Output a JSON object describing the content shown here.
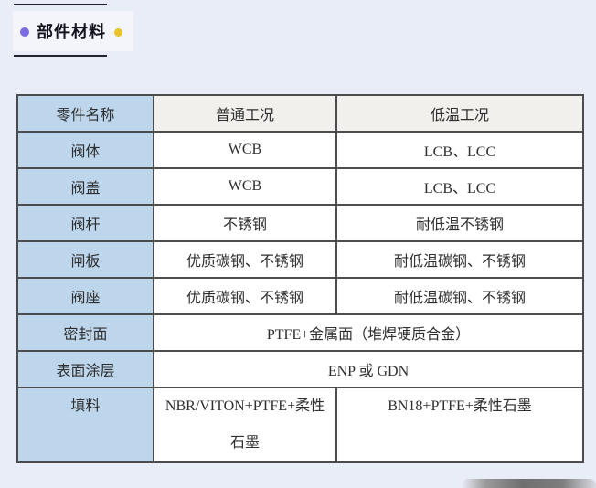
{
  "page_bg": "#e9edf8",
  "heading": {
    "title": "部件材料",
    "dot_left_color": "#7a6ce0",
    "dot_right_color": "#e9c32a"
  },
  "table": {
    "columns": [
      "零件名称",
      "普通工况",
      "低温工况"
    ],
    "rows": [
      {
        "part": "阀体",
        "normal": "WCB",
        "low_temp": "LCB、LCC"
      },
      {
        "part": "阀盖",
        "normal": "WCB",
        "low_temp": "LCB、LCC"
      },
      {
        "part": "阀杆",
        "normal": "不锈钢",
        "low_temp": "耐低温不锈钢"
      },
      {
        "part": "闸板",
        "normal": "优质碳钢、不锈钢",
        "low_temp": "耐低温碳钢、不锈钢"
      },
      {
        "part": "阀座",
        "normal": "优质碳钢、不锈钢",
        "low_temp": "耐低温碳钢、不锈钢"
      },
      {
        "part": "密封面",
        "both": "PTFE+金属面（堆焊硬质合金）"
      },
      {
        "part": "表面涂层",
        "both": "ENP 或 GDN"
      },
      {
        "part": "填料",
        "normal": "NBR/VITON+PTFE+柔性石墨",
        "low_temp": "BN18+PTFE+柔性石墨"
      }
    ],
    "colors": {
      "part_column_bg": "#bdd6ec",
      "header_bg": "#f1f0ec",
      "body_bg": "#ffffff",
      "border": "#4c4c4c"
    }
  }
}
